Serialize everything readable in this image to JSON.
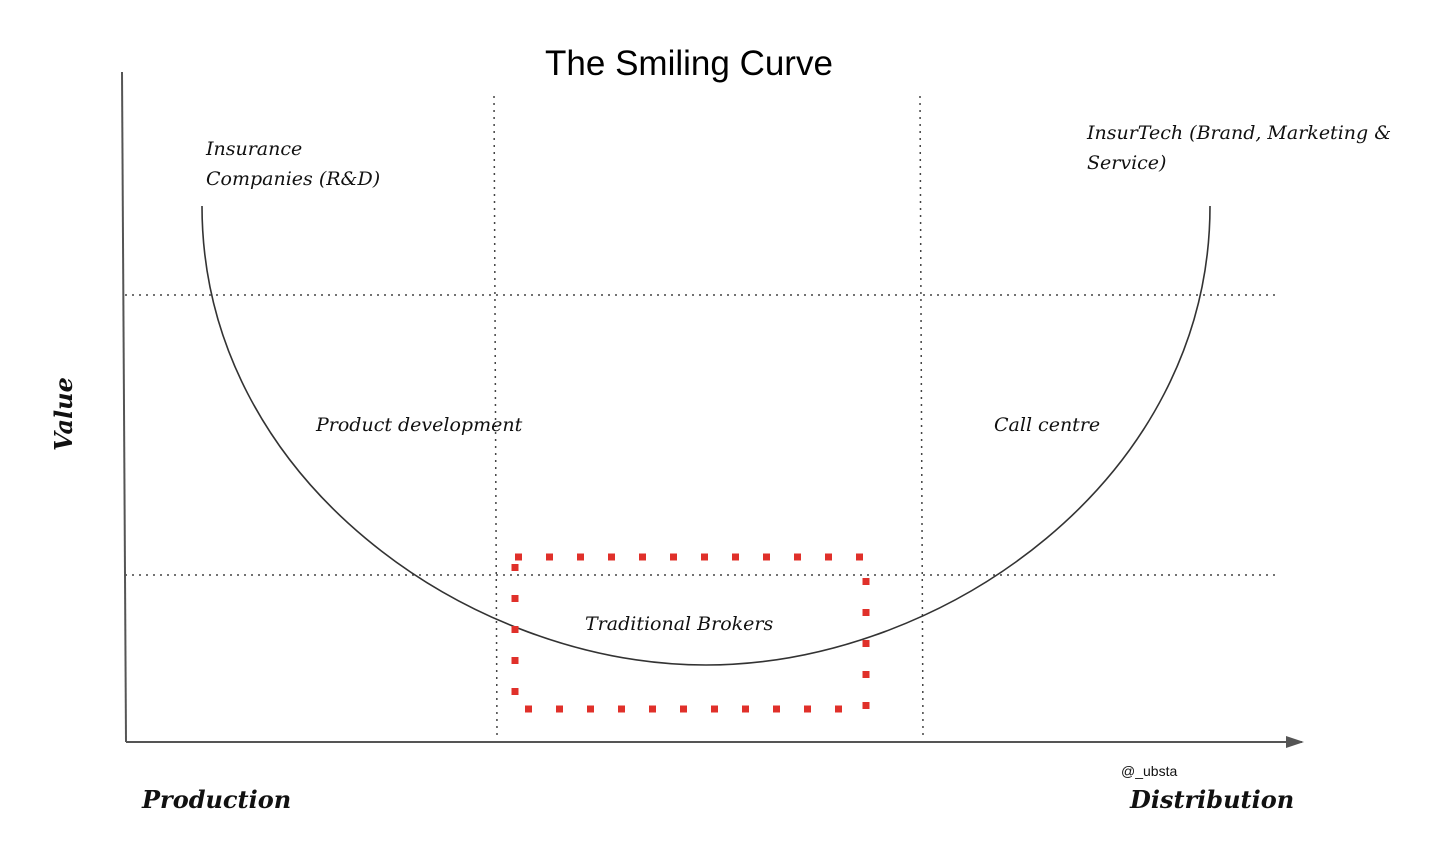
{
  "title": "The Smiling Curve",
  "axes": {
    "y_label": "Value",
    "x_start_label": "Production",
    "x_end_label": "Distribution"
  },
  "credit": "@_ubsta",
  "labels": {
    "insurance_line1": "Insurance",
    "insurance_line2": "Companies (R&D)",
    "insurtech_line1": "InsurTech (Brand, Marketing &",
    "insurtech_line2": "Service)",
    "product_development": "Product development",
    "call_centre": "Call centre",
    "traditional_brokers": "Traditional Brokers"
  },
  "colors": {
    "axis": "#555555",
    "curve": "#333333",
    "grid": "#444444",
    "highlight": "#e0302a",
    "text": "#111111"
  }
}
